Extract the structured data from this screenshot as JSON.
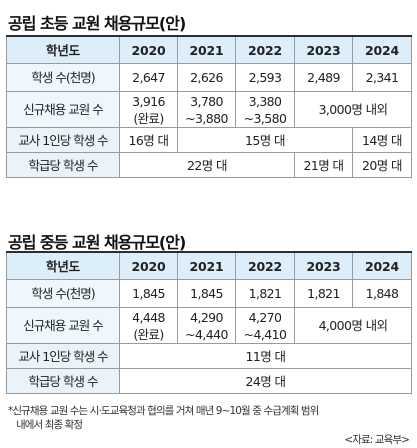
{
  "elementary": {
    "title": "공립 초등 교원 채용규모(안)",
    "header": [
      "학년도",
      "2020",
      "2021",
      "2022",
      "2023",
      "2024"
    ],
    "students": {
      "label": "학생 수(천명)",
      "values": [
        "2,647",
        "2,626",
        "2,593",
        "2,489",
        "2,341"
      ]
    },
    "hiring": {
      "label": "신규채용 교원 수",
      "y2020": [
        "3,916",
        "(완료)"
      ],
      "y2021": [
        "3,780",
        "~3,880"
      ],
      "y2022": [
        "3,380",
        "~3,580"
      ],
      "y2023_2024": "3,000명 내외"
    },
    "per_teacher": {
      "label": "교사 1인당 학생 수",
      "y2020": "16명 대",
      "y2021_2023": "15명 대",
      "y2024": "14명 대"
    },
    "per_class": {
      "label": "학급당 학생 수",
      "y2020_2022": "22명 대",
      "y2023": "21명 대",
      "y2024": "20명 대"
    }
  },
  "middle": {
    "title": "공립 중등 교원 채용규모(안)",
    "header": [
      "학년도",
      "2020",
      "2021",
      "2022",
      "2023",
      "2024"
    ],
    "students": {
      "label": "학생 수(천명)",
      "values": [
        "1,845",
        "1,845",
        "1,821",
        "1,821",
        "1,848"
      ]
    },
    "hiring": {
      "label": "신규채용 교원 수",
      "y2020": [
        "4,448",
        "(완료)"
      ],
      "y2021": [
        "4,290",
        "~4,440"
      ],
      "y2022": [
        "4,270",
        "~4,410"
      ],
      "y2023_2024": "4,000명 내외"
    },
    "per_teacher": {
      "label": "교사 1인당 학생 수",
      "all": "11명 대"
    },
    "per_class": {
      "label": "학급당 학생 수",
      "all": "24명 대"
    }
  },
  "footnote": {
    "line1": "*신규채용 교원 수는 시·도교육청과 협의를 거쳐 매년 9~10월 중 수급계획 범위",
    "line2": "내에서 최종 확정"
  },
  "source": "<자료: 교육부>",
  "colors": {
    "header_bg": "#dbeefa",
    "label_bg": "#eef7fd",
    "rule": "#2d2d2d",
    "border": "#9a9a9a"
  }
}
